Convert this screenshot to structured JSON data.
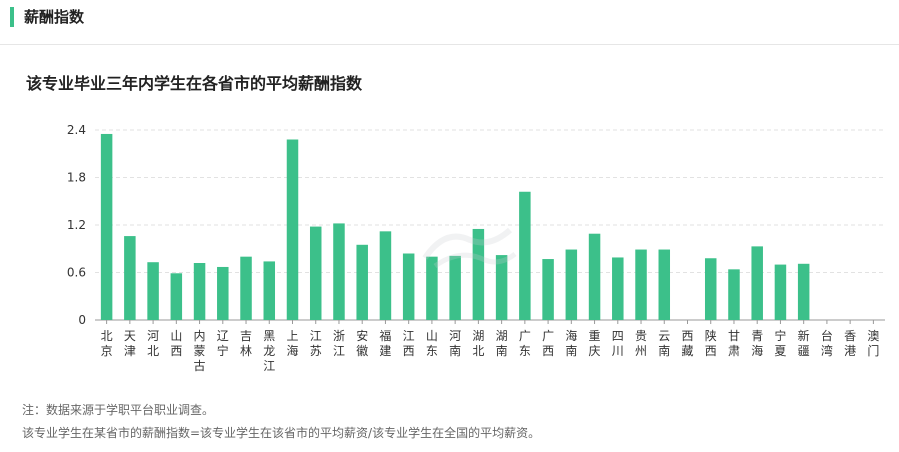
{
  "section": {
    "title": "薪酬指数"
  },
  "chart_data": {
    "type": "bar",
    "title": "该专业毕业三年内学生在各省市的平均薪酬指数",
    "xlabel": "",
    "ylabel": "",
    "ylim": [
      0,
      2.4
    ],
    "yticks": [
      "0",
      "0.6",
      "1.2",
      "1.8",
      "2.4"
    ],
    "grid": true,
    "color": "#3cc08a",
    "categories": [
      "北京",
      "天津",
      "河北",
      "山西",
      "内蒙古",
      "辽宁",
      "吉林",
      "黑龙江",
      "上海",
      "江苏",
      "浙江",
      "安徽",
      "福建",
      "江西",
      "山东",
      "河南",
      "湖北",
      "湖南",
      "广东",
      "广西",
      "海南",
      "重庆",
      "四川",
      "贵州",
      "云南",
      "西藏",
      "陕西",
      "甘肃",
      "青海",
      "宁夏",
      "新疆",
      "台湾",
      "香港",
      "澳门"
    ],
    "values": [
      2.35,
      1.06,
      0.73,
      0.59,
      0.72,
      0.67,
      0.8,
      0.74,
      2.28,
      1.18,
      1.22,
      0.95,
      1.12,
      0.84,
      0.8,
      0.81,
      1.15,
      0.82,
      1.62,
      0.77,
      0.89,
      1.09,
      0.79,
      0.89,
      0.89,
      null,
      0.78,
      0.64,
      0.93,
      0.7,
      0.71,
      null,
      null,
      null
    ]
  },
  "notes": {
    "source": "注：数据来源于学职平台职业调查。",
    "definition": "该专业学生在某省市的薪酬指数=该专业学生在该省市的平均薪资/该专业学生在全国的平均薪资。"
  }
}
